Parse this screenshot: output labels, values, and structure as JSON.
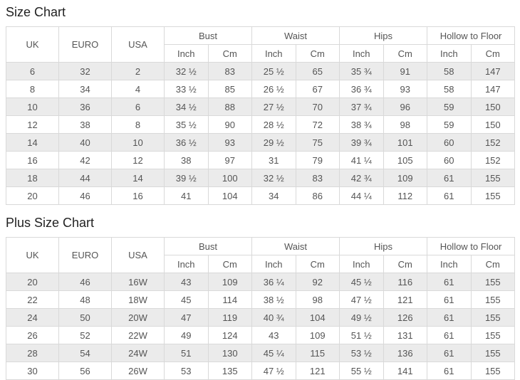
{
  "colors": {
    "stripe_row": "#ebebeb",
    "border": "#d9d9d9",
    "cell_text": "#555555",
    "title_text": "#222222",
    "background": "#ffffff"
  },
  "charts": [
    {
      "title": "Size Chart",
      "simple_headers": [
        "UK",
        "EURO",
        "USA"
      ],
      "group_headers": [
        "Bust",
        "Waist",
        "Hips",
        "Hollow to Floor"
      ],
      "sub_headers": [
        "Inch",
        "Cm"
      ],
      "rows": [
        [
          "6",
          "32",
          "2",
          "32 ½",
          "83",
          "25 ½",
          "65",
          "35 ¾",
          "91",
          "58",
          "147"
        ],
        [
          "8",
          "34",
          "4",
          "33 ½",
          "85",
          "26 ½",
          "67",
          "36 ¾",
          "93",
          "58",
          "147"
        ],
        [
          "10",
          "36",
          "6",
          "34 ½",
          "88",
          "27 ½",
          "70",
          "37 ¾",
          "96",
          "59",
          "150"
        ],
        [
          "12",
          "38",
          "8",
          "35 ½",
          "90",
          "28 ½",
          "72",
          "38 ¾",
          "98",
          "59",
          "150"
        ],
        [
          "14",
          "40",
          "10",
          "36 ½",
          "93",
          "29 ½",
          "75",
          "39 ¾",
          "101",
          "60",
          "152"
        ],
        [
          "16",
          "42",
          "12",
          "38",
          "97",
          "31",
          "79",
          "41 ¼",
          "105",
          "60",
          "152"
        ],
        [
          "18",
          "44",
          "14",
          "39 ½",
          "100",
          "32 ½",
          "83",
          "42 ¾",
          "109",
          "61",
          "155"
        ],
        [
          "20",
          "46",
          "16",
          "41",
          "104",
          "34",
          "86",
          "44 ¼",
          "112",
          "61",
          "155"
        ]
      ]
    },
    {
      "title": "Plus Size Chart",
      "simple_headers": [
        "UK",
        "EURO",
        "USA"
      ],
      "group_headers": [
        "Bust",
        "Waist",
        "Hips",
        "Hollow to Floor"
      ],
      "sub_headers": [
        "Inch",
        "Cm"
      ],
      "rows": [
        [
          "20",
          "46",
          "16W",
          "43",
          "109",
          "36 ¼",
          "92",
          "45 ½",
          "116",
          "61",
          "155"
        ],
        [
          "22",
          "48",
          "18W",
          "45",
          "114",
          "38 ½",
          "98",
          "47 ½",
          "121",
          "61",
          "155"
        ],
        [
          "24",
          "50",
          "20W",
          "47",
          "119",
          "40 ¾",
          "104",
          "49 ½",
          "126",
          "61",
          "155"
        ],
        [
          "26",
          "52",
          "22W",
          "49",
          "124",
          "43",
          "109",
          "51 ½",
          "131",
          "61",
          "155"
        ],
        [
          "28",
          "54",
          "24W",
          "51",
          "130",
          "45 ¼",
          "115",
          "53 ½",
          "136",
          "61",
          "155"
        ],
        [
          "30",
          "56",
          "26W",
          "53",
          "135",
          "47 ½",
          "121",
          "55 ½",
          "141",
          "61",
          "155"
        ]
      ]
    }
  ]
}
